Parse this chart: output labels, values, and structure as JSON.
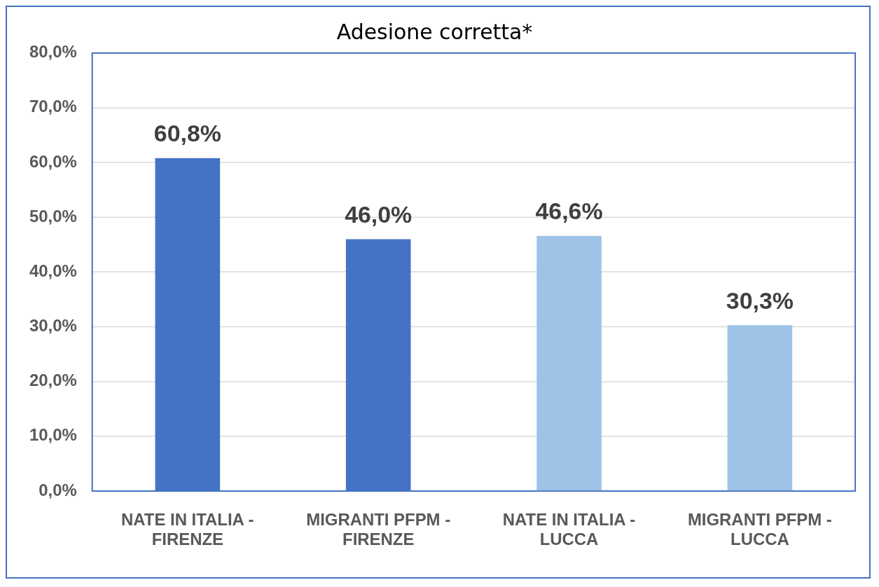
{
  "chart_data": {
    "type": "bar",
    "title": "Adesione corretta*",
    "categories": [
      "NATE IN ITALIA - FIRENZE",
      "MIGRANTI PFPM - FIRENZE",
      "NATE IN ITALIA - LUCCA",
      "MIGRANTI PFPM - LUCCA"
    ],
    "values": [
      60.8,
      46.0,
      46.6,
      30.3
    ],
    "colors": [
      "#4472c4",
      "#4472c4",
      "#9dc3e6",
      "#9dc3e6"
    ],
    "value_labels": [
      "60,8%",
      "46,0%",
      "46,6%",
      "30,3%"
    ],
    "ylim": [
      0,
      80
    ],
    "yticks": [
      {
        "value": 0,
        "label": "0,0%"
      },
      {
        "value": 10,
        "label": "10,0%"
      },
      {
        "value": 20,
        "label": "20,0%"
      },
      {
        "value": 30,
        "label": "30,0%"
      },
      {
        "value": 40,
        "label": "40,0%"
      },
      {
        "value": 50,
        "label": "50,0%"
      },
      {
        "value": 60,
        "label": "60,0%"
      },
      {
        "value": 70,
        "label": "70,0%"
      },
      {
        "value": 80,
        "label": "80,0%"
      }
    ],
    "grid": "y",
    "legend": false
  }
}
